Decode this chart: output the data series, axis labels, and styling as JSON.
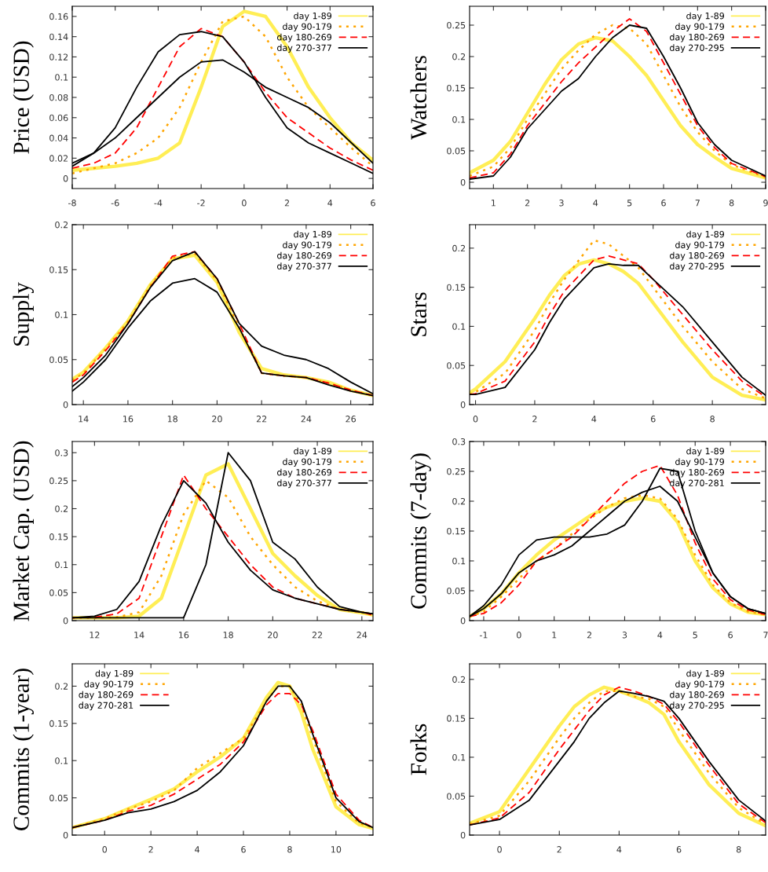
{
  "chart_data": [
    {
      "type": "line",
      "ylabel": "Price (USD)",
      "x": [
        -8,
        -7,
        -6,
        -5,
        -4,
        -3,
        -2,
        -1,
        0,
        1,
        2,
        3,
        4,
        5,
        6
      ],
      "xlim": [
        -8,
        6
      ],
      "xticks": [
        -8,
        -6,
        -4,
        -2,
        0,
        2,
        4,
        6
      ],
      "ylim": [
        -0.01,
        0.17
      ],
      "yticks": [
        0,
        0.02,
        0.04,
        0.06,
        0.08,
        0.1,
        0.12,
        0.14,
        0.16
      ],
      "legend": "top right",
      "series": [
        {
          "name": "day 1-89",
          "color": "#ffee55",
          "line_style": "solid",
          "values": [
            0.008,
            0.01,
            0.012,
            0.015,
            0.02,
            0.035,
            0.09,
            0.15,
            0.165,
            0.16,
            0.13,
            0.09,
            0.06,
            0.035,
            0.018
          ]
        },
        {
          "name": "day 90-179",
          "color": "#ffa500",
          "line_style": "dotted",
          "values": [
            0.005,
            0.01,
            0.015,
            0.025,
            0.04,
            0.07,
            0.115,
            0.155,
            0.16,
            0.14,
            0.1,
            0.07,
            0.05,
            0.03,
            0.012
          ]
        },
        {
          "name": "day 180-269",
          "color": "#ff0000",
          "line_style": "dashed",
          "values": [
            0.01,
            0.015,
            0.025,
            0.05,
            0.09,
            0.13,
            0.148,
            0.14,
            0.115,
            0.085,
            0.06,
            0.045,
            0.03,
            0.018,
            0.008
          ]
        },
        {
          "name": "day 270-377",
          "color": "#000000",
          "line_style": "solid",
          "values": [
            0.012,
            0.025,
            0.05,
            0.09,
            0.125,
            0.142,
            0.145,
            0.14,
            0.115,
            0.08,
            0.05,
            0.035,
            0.025,
            0.015,
            0.005
          ]
        },
        {
          "color": "#000000",
          "line_style": "solid",
          "values": [
            0.015,
            0.025,
            0.04,
            0.06,
            0.08,
            0.1,
            0.115,
            0.117,
            0.105,
            0.09,
            0.08,
            0.07,
            0.055,
            0.035,
            0.015
          ]
        }
      ]
    },
    {
      "type": "line",
      "ylabel": "Watchers",
      "x": [
        0.3,
        1,
        1.5,
        2,
        2.5,
        3,
        3.5,
        4,
        4.5,
        5,
        5.5,
        6,
        6.5,
        7,
        7.5,
        8,
        9
      ],
      "xlim": [
        0.3,
        9
      ],
      "xticks": [
        1,
        2,
        3,
        4,
        5,
        6,
        7,
        8,
        9
      ],
      "ylim": [
        -0.01,
        0.28
      ],
      "yticks": [
        0,
        0.05,
        0.1,
        0.15,
        0.2,
        0.25
      ],
      "legend": "top right",
      "series": [
        {
          "name": "day 1-89",
          "color": "#ffee55",
          "line_style": "solid",
          "values": [
            0.015,
            0.035,
            0.065,
            0.11,
            0.155,
            0.195,
            0.22,
            0.23,
            0.225,
            0.2,
            0.17,
            0.13,
            0.09,
            0.06,
            0.04,
            0.022,
            0.007
          ]
        },
        {
          "name": "day 90-179",
          "color": "#ffa500",
          "line_style": "dotted",
          "values": [
            0.01,
            0.025,
            0.055,
            0.1,
            0.14,
            0.18,
            0.21,
            0.235,
            0.25,
            0.245,
            0.22,
            0.17,
            0.12,
            0.08,
            0.05,
            0.028,
            0.008
          ]
        },
        {
          "name": "day 180-269",
          "color": "#ff0000",
          "line_style": "dashed",
          "values": [
            0.007,
            0.015,
            0.045,
            0.09,
            0.125,
            0.16,
            0.19,
            0.215,
            0.24,
            0.26,
            0.24,
            0.19,
            0.14,
            0.09,
            0.055,
            0.03,
            0.009
          ]
        },
        {
          "name": "day 270-295",
          "color": "#000000",
          "line_style": "solid",
          "values": [
            0.005,
            0.01,
            0.04,
            0.085,
            0.115,
            0.145,
            0.165,
            0.2,
            0.23,
            0.25,
            0.245,
            0.2,
            0.15,
            0.095,
            0.06,
            0.035,
            0.01
          ]
        }
      ]
    },
    {
      "type": "line",
      "ylabel": "Supply",
      "x": [
        13.5,
        14,
        15,
        16,
        17,
        18,
        19,
        20,
        21,
        22,
        23,
        24,
        25,
        26,
        27
      ],
      "xlim": [
        13.5,
        27
      ],
      "xticks": [
        14,
        16,
        18,
        20,
        22,
        24,
        26
      ],
      "ylim": [
        0,
        0.2
      ],
      "yticks": [
        0,
        0.05,
        0.1,
        0.15,
        0.2
      ],
      "legend": "top right",
      "series": [
        {
          "name": "day 1-89",
          "color": "#ffee55",
          "line_style": "solid",
          "values": [
            0.028,
            0.036,
            0.063,
            0.093,
            0.133,
            0.162,
            0.166,
            0.136,
            0.08,
            0.04,
            0.033,
            0.03,
            0.025,
            0.016,
            0.01
          ]
        },
        {
          "name": "day 90-179",
          "color": "#ffa500",
          "line_style": "dotted",
          "values": [
            0.027,
            0.035,
            0.062,
            0.092,
            0.132,
            0.163,
            0.168,
            0.138,
            0.085,
            0.035,
            0.032,
            0.03,
            0.024,
            0.016,
            0.01
          ]
        },
        {
          "name": "day 180-269",
          "color": "#ff0000",
          "line_style": "dashed",
          "values": [
            0.025,
            0.033,
            0.06,
            0.09,
            0.13,
            0.165,
            0.17,
            0.14,
            0.09,
            0.035,
            0.032,
            0.03,
            0.024,
            0.016,
            0.01
          ]
        },
        {
          "name": "day 270-377",
          "color": "#000000",
          "line_style": "solid",
          "values": [
            0.02,
            0.03,
            0.055,
            0.09,
            0.13,
            0.16,
            0.17,
            0.14,
            0.09,
            0.065,
            0.055,
            0.05,
            0.04,
            0.025,
            0.012
          ]
        },
        {
          "color": "#000000",
          "line_style": "solid",
          "values": [
            0.015,
            0.025,
            0.05,
            0.085,
            0.115,
            0.135,
            0.14,
            0.125,
            0.085,
            0.035,
            0.032,
            0.03,
            0.022,
            0.015,
            0.01
          ]
        }
      ]
    },
    {
      "type": "line",
      "ylabel": "Stars",
      "x": [
        -0.2,
        0,
        1,
        2,
        2.5,
        3,
        3.5,
        4,
        4.5,
        5,
        5.5,
        6,
        7,
        8,
        9,
        9.8
      ],
      "xlim": [
        -0.2,
        9.8
      ],
      "xticks": [
        0,
        2,
        4,
        6,
        8
      ],
      "ylim": [
        0,
        0.23
      ],
      "yticks": [
        0,
        0.05,
        0.1,
        0.15,
        0.2
      ],
      "legend": "top right",
      "series": [
        {
          "name": "day 1-89",
          "color": "#ffee55",
          "line_style": "solid",
          "values": [
            0.015,
            0.02,
            0.055,
            0.11,
            0.14,
            0.165,
            0.18,
            0.185,
            0.18,
            0.17,
            0.155,
            0.13,
            0.08,
            0.035,
            0.012,
            0.006
          ]
        },
        {
          "name": "day 90-179",
          "color": "#ffa500",
          "line_style": "dotted",
          "values": [
            0.013,
            0.016,
            0.04,
            0.095,
            0.13,
            0.16,
            0.185,
            0.21,
            0.205,
            0.19,
            0.175,
            0.15,
            0.1,
            0.055,
            0.02,
            0.008
          ]
        },
        {
          "name": "day 180-269",
          "color": "#ff0000",
          "line_style": "dashed",
          "values": [
            0.013,
            0.014,
            0.03,
            0.08,
            0.115,
            0.145,
            0.165,
            0.185,
            0.19,
            0.185,
            0.18,
            0.16,
            0.115,
            0.07,
            0.03,
            0.01
          ]
        },
        {
          "name": "day 270-295",
          "color": "#000000",
          "line_style": "solid",
          "values": [
            0.013,
            0.013,
            0.022,
            0.07,
            0.105,
            0.135,
            0.155,
            0.175,
            0.18,
            0.178,
            0.178,
            0.16,
            0.125,
            0.08,
            0.035,
            0.012
          ]
        }
      ]
    },
    {
      "type": "line",
      "ylabel": "Market Cap. (USD)",
      "x": [
        11,
        12,
        13,
        14,
        15,
        16,
        17,
        18,
        19,
        20,
        21,
        22,
        23,
        24,
        24.5
      ],
      "xlim": [
        11,
        24.5
      ],
      "xticks": [
        12,
        14,
        16,
        18,
        20,
        22,
        24
      ],
      "ylim": [
        0,
        0.32
      ],
      "yticks": [
        0,
        0.05,
        0.1,
        0.15,
        0.2,
        0.25,
        0.3
      ],
      "legend": "top right",
      "series": [
        {
          "name": "day 1-89",
          "color": "#ffee55",
          "line_style": "solid",
          "values": [
            0.005,
            0.005,
            0.005,
            0.008,
            0.04,
            0.15,
            0.26,
            0.28,
            0.2,
            0.12,
            0.08,
            0.045,
            0.02,
            0.014,
            0.01
          ]
        },
        {
          "name": "day 90-179",
          "color": "#ffa500",
          "line_style": "dotted",
          "values": [
            0.005,
            0.005,
            0.006,
            0.015,
            0.08,
            0.19,
            0.25,
            0.22,
            0.15,
            0.1,
            0.06,
            0.035,
            0.02,
            0.015,
            0.01
          ]
        },
        {
          "name": "day 180-269",
          "color": "#ff0000",
          "line_style": "dashed",
          "values": [
            0.005,
            0.006,
            0.012,
            0.04,
            0.15,
            0.26,
            0.2,
            0.15,
            0.1,
            0.06,
            0.04,
            0.03,
            0.02,
            0.015,
            0.01
          ]
        },
        {
          "name": "day 270-377",
          "color": "#000000",
          "line_style": "solid",
          "values": [
            0.005,
            0.008,
            0.02,
            0.07,
            0.17,
            0.25,
            0.21,
            0.14,
            0.09,
            0.055,
            0.04,
            0.03,
            0.02,
            0.015,
            0.012
          ]
        },
        {
          "color": "#000000",
          "line_style": "solid",
          "values": [
            0.005,
            0.005,
            0.005,
            0.005,
            0.005,
            0.005,
            0.1,
            0.3,
            0.25,
            0.14,
            0.11,
            0.06,
            0.025,
            0.015,
            0.012
          ]
        }
      ]
    },
    {
      "type": "line",
      "ylabel": "Commits (7-day)",
      "x": [
        -1.4,
        -1,
        -0.5,
        0,
        0.5,
        1,
        1.5,
        2,
        2.5,
        3,
        3.5,
        4,
        4.5,
        5,
        5.5,
        6,
        6.5,
        7
      ],
      "xlim": [
        -1.4,
        7
      ],
      "xticks": [
        -1,
        0,
        1,
        2,
        3,
        4,
        5,
        6,
        7
      ],
      "ylim": [
        0,
        0.3
      ],
      "yticks": [
        0,
        0.05,
        0.1,
        0.15,
        0.2,
        0.25,
        0.3
      ],
      "legend": "top right",
      "series": [
        {
          "name": "day 1-89",
          "color": "#ffee55",
          "line_style": "solid",
          "values": [
            0.007,
            0.02,
            0.045,
            0.08,
            0.11,
            0.135,
            0.155,
            0.175,
            0.19,
            0.2,
            0.205,
            0.2,
            0.165,
            0.1,
            0.055,
            0.028,
            0.014,
            0.01
          ]
        },
        {
          "name": "day 90-179",
          "color": "#ffa500",
          "line_style": "dotted",
          "values": [
            0.007,
            0.015,
            0.04,
            0.07,
            0.1,
            0.12,
            0.145,
            0.17,
            0.19,
            0.205,
            0.21,
            0.205,
            0.17,
            0.11,
            0.06,
            0.03,
            0.015,
            0.01
          ]
        },
        {
          "name": "day 180-269",
          "color": "#ff0000",
          "line_style": "dashed",
          "values": [
            0.007,
            0.012,
            0.03,
            0.06,
            0.1,
            0.12,
            0.14,
            0.17,
            0.2,
            0.23,
            0.25,
            0.26,
            0.21,
            0.13,
            0.07,
            0.035,
            0.018,
            0.01
          ]
        },
        {
          "name": "day 270-281",
          "color": "#000000",
          "line_style": "solid",
          "values": [
            0.007,
            0.02,
            0.045,
            0.08,
            0.1,
            0.11,
            0.125,
            0.15,
            0.175,
            0.2,
            0.215,
            0.225,
            0.2,
            0.14,
            0.08,
            0.04,
            0.02,
            0.012
          ]
        },
        {
          "color": "#000000",
          "line_style": "solid",
          "values": [
            0.007,
            0.025,
            0.06,
            0.11,
            0.135,
            0.14,
            0.14,
            0.14,
            0.145,
            0.16,
            0.2,
            0.255,
            0.25,
            0.15,
            0.08,
            0.04,
            0.02,
            0.012
          ]
        }
      ]
    },
    {
      "type": "line",
      "ylabel": "Commits (1-year)",
      "x": [
        -1.4,
        0,
        1,
        2,
        3,
        4,
        5,
        6,
        7,
        7.5,
        8,
        8.5,
        9,
        10,
        11,
        11.6
      ],
      "xlim": [
        -1.4,
        11.6
      ],
      "xticks": [
        0,
        2,
        4,
        6,
        8,
        10
      ],
      "ylim": [
        0,
        0.23
      ],
      "yticks": [
        0,
        0.05,
        0.1,
        0.15,
        0.2
      ],
      "legend": "top left",
      "series": [
        {
          "name": "day 1-89",
          "color": "#ffee55",
          "line_style": "solid",
          "values": [
            0.01,
            0.022,
            0.035,
            0.048,
            0.062,
            0.085,
            0.105,
            0.13,
            0.185,
            0.205,
            0.2,
            0.165,
            0.115,
            0.038,
            0.014,
            0.009
          ]
        },
        {
          "name": "day 90-179",
          "color": "#ffa500",
          "line_style": "dotted",
          "values": [
            0.01,
            0.022,
            0.035,
            0.045,
            0.06,
            0.09,
            0.11,
            0.13,
            0.18,
            0.2,
            0.2,
            0.175,
            0.13,
            0.045,
            0.016,
            0.01
          ]
        },
        {
          "name": "day 180-269",
          "color": "#ff0000",
          "line_style": "dashed",
          "values": [
            0.01,
            0.02,
            0.032,
            0.04,
            0.055,
            0.075,
            0.095,
            0.125,
            0.175,
            0.19,
            0.19,
            0.175,
            0.14,
            0.055,
            0.02,
            0.01
          ]
        },
        {
          "name": "day 270-281",
          "color": "#000000",
          "line_style": "solid",
          "values": [
            0.01,
            0.02,
            0.03,
            0.035,
            0.045,
            0.06,
            0.085,
            0.12,
            0.18,
            0.2,
            0.2,
            0.18,
            0.135,
            0.05,
            0.018,
            0.01
          ]
        }
      ]
    },
    {
      "type": "line",
      "ylabel": "Forks",
      "x": [
        -1,
        0,
        1,
        2,
        2.5,
        3,
        3.5,
        4,
        4.5,
        5,
        5.5,
        6,
        7,
        8,
        8.9
      ],
      "xlim": [
        -1,
        8.9
      ],
      "xticks": [
        0,
        2,
        4,
        6,
        8
      ],
      "ylim": [
        0,
        0.22
      ],
      "yticks": [
        0,
        0.05,
        0.1,
        0.15,
        0.2
      ],
      "legend": "top right",
      "series": [
        {
          "name": "day 1-89",
          "color": "#ffee55",
          "line_style": "solid",
          "values": [
            0.015,
            0.03,
            0.085,
            0.14,
            0.165,
            0.18,
            0.19,
            0.185,
            0.178,
            0.17,
            0.155,
            0.12,
            0.065,
            0.028,
            0.012
          ]
        },
        {
          "name": "day 90-179",
          "color": "#ffa500",
          "line_style": "dotted",
          "values": [
            0.014,
            0.025,
            0.07,
            0.125,
            0.15,
            0.17,
            0.185,
            0.185,
            0.178,
            0.175,
            0.165,
            0.135,
            0.08,
            0.035,
            0.014
          ]
        },
        {
          "name": "day 180-269",
          "color": "#ff0000",
          "line_style": "dashed",
          "values": [
            0.013,
            0.022,
            0.055,
            0.11,
            0.135,
            0.16,
            0.18,
            0.19,
            0.185,
            0.178,
            0.168,
            0.145,
            0.09,
            0.04,
            0.016
          ]
        },
        {
          "name": "day 270-295",
          "color": "#000000",
          "line_style": "solid",
          "values": [
            0.013,
            0.02,
            0.045,
            0.095,
            0.12,
            0.15,
            0.17,
            0.185,
            0.182,
            0.178,
            0.172,
            0.15,
            0.095,
            0.045,
            0.018
          ]
        }
      ]
    }
  ]
}
